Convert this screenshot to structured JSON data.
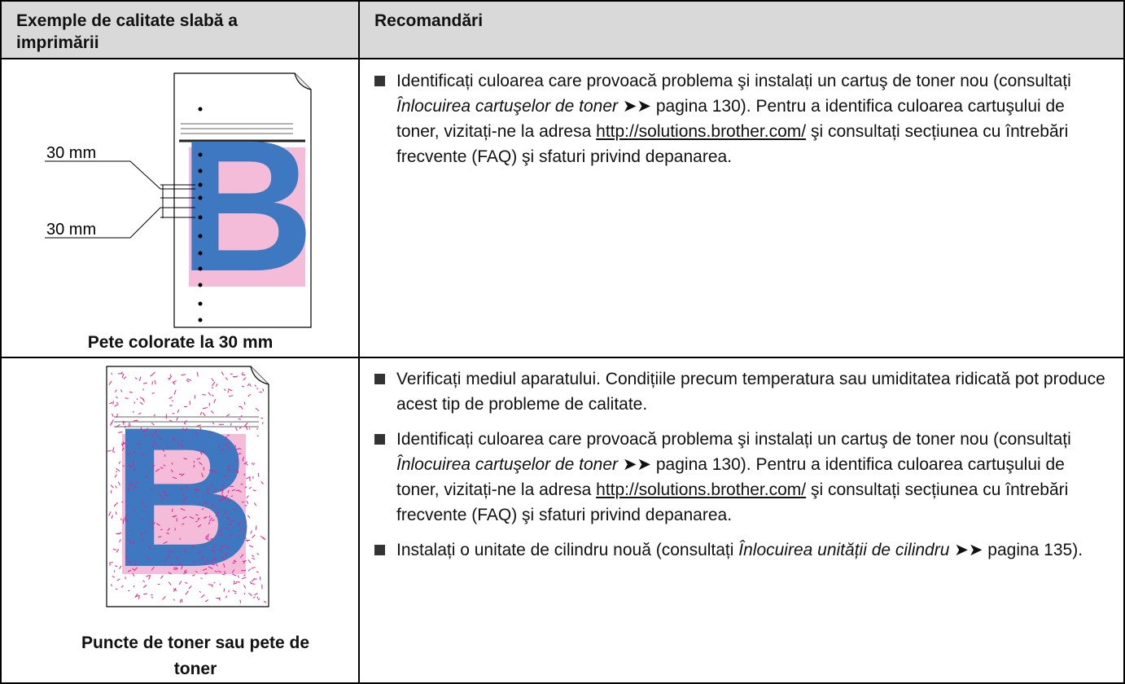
{
  "table": {
    "header": [
      "Exemple de calitate slabă a imprimării",
      "Recomandări"
    ],
    "rows": [
      {
        "figure": {
          "letter": "B",
          "labels": [
            "30 mm",
            "30 mm"
          ]
        },
        "caption": "Pete colorate la 30 mm",
        "bullets": [
          [
            {
              "text": "Identificați culoarea care provoacă problema şi instalați un cartuş de toner nou (consultați "
            },
            {
              "text": "Înlocuirea cartuşelor de toner",
              "style": "italic"
            },
            {
              "text": " ➤➤ pagina 130). Pentru a identifica culoarea cartuşului de toner, vizitați-ne la adresa "
            },
            {
              "text": "http://solutions.brother.com/",
              "style": "link"
            },
            {
              "text": " şi consultați secțiunea cu întrebări frecvente (FAQ) şi sfaturi privind depanarea."
            }
          ]
        ]
      },
      {
        "figure": {
          "letter": "B"
        },
        "caption": "Puncte de toner sau pete de toner",
        "bullets": [
          [
            {
              "text": "Verificați mediul aparatului. Condițiile precum temperatura sau umiditatea ridicată pot produce acest tip de probleme de calitate."
            }
          ],
          [
            {
              "text": "Identificați culoarea care provoacă problema şi instalați un cartuş de toner nou (consultați "
            },
            {
              "text": "Înlocuirea cartuşelor de toner",
              "style": "italic"
            },
            {
              "text": " ➤➤ pagina 130). Pentru a identifica culoarea cartuşului de toner, vizitați-ne la adresa "
            },
            {
              "text": "http://solutions.brother.com/",
              "style": "link"
            },
            {
              "text": " şi consultați secțiunea cu întrebări frecvente (FAQ) şi sfaturi privind depanarea."
            }
          ],
          [
            {
              "text": "Instalați o unitate de cilindru nouă (consultați "
            },
            {
              "text": "Înlocuirea unității de cilindru",
              "style": "italic"
            },
            {
              "text": " ➤➤ pagina 135)."
            }
          ]
        ]
      }
    ]
  }
}
